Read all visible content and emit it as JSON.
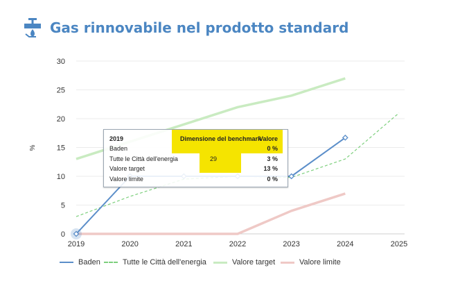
{
  "page": {
    "title": "Gas rinnovabile nel prodotto standard",
    "accent_color": "#4b86c2"
  },
  "chart_data": {
    "type": "line",
    "ylabel": "%",
    "xlabel": "",
    "ylim": [
      0,
      30
    ],
    "yticks": [
      "0",
      "5",
      "10",
      "15",
      "20",
      "25",
      "30"
    ],
    "x": [
      "2019",
      "2020",
      "2021",
      "2022",
      "2023",
      "2024",
      "2025"
    ],
    "grid": "horizontal",
    "legend_position": "bottom",
    "series": [
      {
        "name": "Baden",
        "color": "#5b8ec9",
        "style": "solid",
        "values": [
          0,
          10,
          10,
          10,
          10,
          16.7,
          null
        ]
      },
      {
        "name": "Tutte le Città dell'energia",
        "color": "#7ccf7c",
        "style": "dashed",
        "values": [
          3,
          6.5,
          9.5,
          10,
          9.8,
          13,
          21
        ]
      },
      {
        "name": "Valore target",
        "color": "#c9ebc1",
        "style": "solid",
        "values": [
          13,
          16,
          19,
          22,
          24,
          27,
          null
        ]
      },
      {
        "name": "Valore limite",
        "color": "#efc9c6",
        "style": "solid",
        "values": [
          0,
          0,
          0,
          0,
          4,
          7,
          null
        ]
      }
    ]
  },
  "tooltip": {
    "year": "2019",
    "bench_header": "Dimensione del benchmark",
    "value_header": "Valore",
    "rows": [
      {
        "name": "Baden",
        "bench": "",
        "value": "0 %"
      },
      {
        "name": "Tutte le Città dell'energia",
        "bench": "29",
        "value": "3 %"
      },
      {
        "name": "Valore target",
        "bench": "",
        "value": "13 %"
      },
      {
        "name": "Valore limite",
        "bench": "",
        "value": "0 %"
      }
    ]
  }
}
